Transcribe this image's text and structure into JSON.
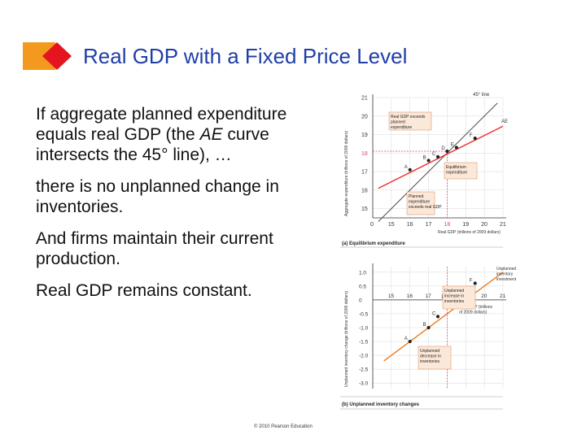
{
  "slide": {
    "title": "Real GDP with a Fixed Price Level",
    "bullet1_pre": "If aggregate planned expenditure equals real GDP (the ",
    "bullet1_em": "AE",
    "bullet1_post": " curve intersects the 45° line), …",
    "bullet2": "there is no unplanned change in inventories.",
    "bullet3": "And firms maintain their current production.",
    "bullet4": "Real GDP remains constant.",
    "copyright": "© 2010 Pearson Education"
  },
  "colors": {
    "title": "#1f3fa8",
    "logo_orange": "#f39a1e",
    "logo_red": "#e4151f",
    "ae_line": "#e8312a",
    "unplanned_line": "#f07a1a",
    "line45": "#444444",
    "highlight": "#e0408a"
  },
  "chart_data": [
    {
      "type": "line",
      "panel": "(a) Equilibrium expenditure",
      "xlabel": "Real GDP (trillions of 2009 dollars)",
      "ylabel": "Aggregate expenditure (trillions of 2009 dollars)",
      "xlim": [
        14,
        21
      ],
      "ylim": [
        14.5,
        21
      ],
      "xticks": [
        "0",
        "15",
        "16",
        "17",
        "18",
        "19",
        "20",
        "21"
      ],
      "yticks": [
        "15",
        "16",
        "17",
        "18",
        "19",
        "20",
        "21"
      ],
      "highlight_tick": "18",
      "series": [
        {
          "name": "45° line",
          "points": [
            [
              14.3,
              14.3
            ],
            [
              20.7,
              20.7
            ]
          ]
        },
        {
          "name": "AE",
          "points": [
            [
              14.3,
              16.1
            ],
            [
              21.0,
              19.45
            ]
          ]
        }
      ],
      "points": [
        {
          "label": "A",
          "x": 16,
          "y": 17.1
        },
        {
          "label": "B",
          "x": 17,
          "y": 17.6
        },
        {
          "label": "C",
          "x": 17.5,
          "y": 17.8
        },
        {
          "label": "D",
          "x": 18,
          "y": 18.1
        },
        {
          "label": "E",
          "x": 18.5,
          "y": 18.3
        },
        {
          "label": "F",
          "x": 19.5,
          "y": 18.8
        }
      ],
      "annotations": [
        "Real GDP exceeds planned expenditure",
        "Equilibrium expenditure",
        "Planned expenditure exceeds real GDP"
      ]
    },
    {
      "type": "line",
      "panel": "(b) Unplanned inventory changes",
      "xlabel": "Real GDP (trillions of 2009 dollars)",
      "ylabel": "Unplanned inventory change (trillions of 2009 dollars)",
      "xlim": [
        14,
        21
      ],
      "ylim": [
        -3.2,
        1.2
      ],
      "xticks": [
        "15",
        "16",
        "17",
        "18",
        "19",
        "20",
        "21"
      ],
      "yticks": [
        "1.0",
        "0.5",
        "0",
        "-0.5",
        "-1.0",
        "-1.5",
        "-2.0",
        "-2.5",
        "-3.0"
      ],
      "highlight_tick": "18",
      "series": [
        {
          "name": "Unplanned inventory investment",
          "points": [
            [
              14.6,
              -2.2
            ],
            [
              21.0,
              1.0
            ]
          ]
        }
      ],
      "points": [
        {
          "label": "A",
          "x": 16,
          "y": -1.5
        },
        {
          "label": "B",
          "x": 17,
          "y": -1.0
        },
        {
          "label": "C",
          "x": 17.5,
          "y": -0.6
        },
        {
          "label": "D",
          "x": 18,
          "y": 0
        },
        {
          "label": "E",
          "x": 18.5,
          "y": 0.2
        },
        {
          "label": "F",
          "x": 19.5,
          "y": 0.6
        }
      ],
      "annotations": [
        "Unplanned increase in inventories",
        "Unplanned decrease in inventories"
      ]
    }
  ]
}
